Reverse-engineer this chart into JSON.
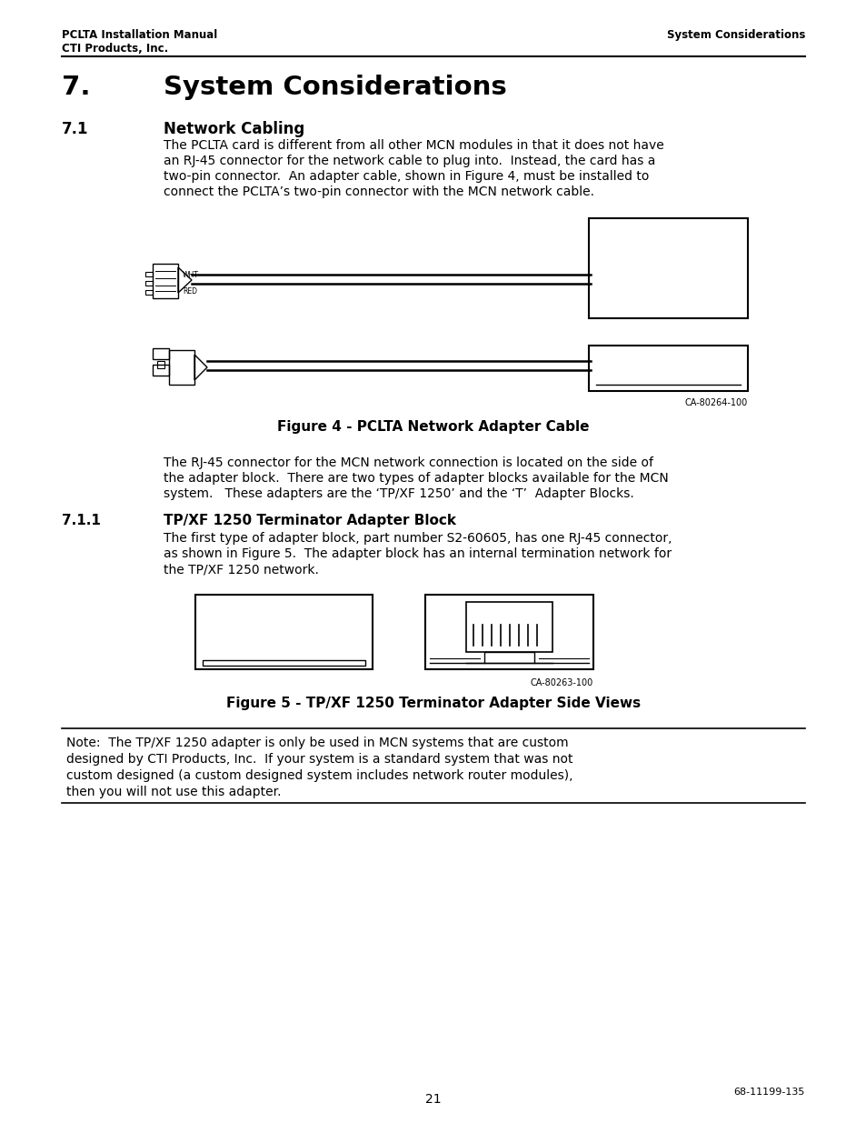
{
  "header_left_line1": "PCLTA Installation Manual",
  "header_left_line2": "CTI Products, Inc.",
  "header_right": "System Considerations",
  "section_number": "7.",
  "section_title": "System Considerations",
  "subsection_number": "7.1",
  "subsection_title": "Network Cabling",
  "body_text_1": [
    "The PCLTA card is different from all other MCN modules in that it does not have",
    "an RJ-45 connector for the network cable to plug into.  Instead, the card has a",
    "two-pin connector.  An adapter cable, shown in Figure 4, must be installed to",
    "connect the PCLTA’s two-pin connector with the MCN network cable."
  ],
  "fig4_caption": "Figure 4 - PCLTA Network Adapter Cable",
  "fig4_label": "CA-80264-100",
  "body_text_2": [
    "The RJ-45 connector for the MCN network connection is located on the side of",
    "the adapter block.  There are two types of adapter blocks available for the MCN",
    "system.   These adapters are the ‘TP/XF 1250’ and the ‘T’  Adapter Blocks."
  ],
  "subsubsection_number": "7.1.1",
  "subsubsection_title": "TP/XF 1250 Terminator Adapter Block",
  "body_text_3": [
    "The first type of adapter block, part number S2-60605, has one RJ-45 connector,",
    "as shown in Figure 5.  The adapter block has an internal termination network for",
    "the TP/XF 1250 network."
  ],
  "fig5_caption": "Figure 5 - TP/XF 1250 Terminator Adapter Side Views",
  "fig5_label": "CA-80263-100",
  "note_text": [
    "Note:  The TP/XF 1250 adapter is only be used in MCN systems that are custom",
    "designed by CTI Products, Inc.  If your system is a standard system that was not",
    "custom designed (a custom designed system includes network router modules),",
    "then you will not use this adapter."
  ],
  "page_number": "21",
  "doc_number": "68-11199-135",
  "bg_color": "#ffffff",
  "text_color": "#000000"
}
